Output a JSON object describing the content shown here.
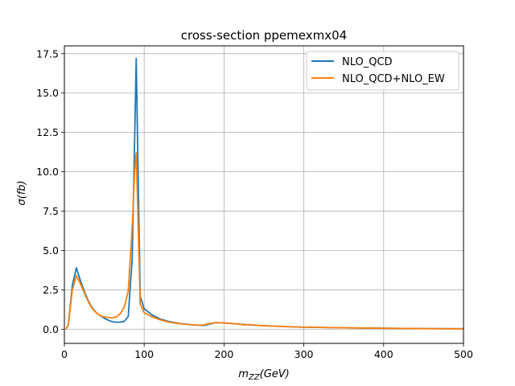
{
  "chart_data": {
    "type": "line",
    "title": "cross-section ppemexmx04",
    "xlabel": "m",
    "xlabel_sub": "ZZ",
    "xlabel_unit": "(GeV)",
    "ylabel": "σ(fb)",
    "xlim": [
      0,
      500
    ],
    "ylim": [
      -0.9,
      18.0
    ],
    "xticks": [
      0,
      100,
      200,
      300,
      400,
      500
    ],
    "yticks": [
      0.0,
      2.5,
      5.0,
      7.5,
      10.0,
      12.5,
      15.0,
      17.5
    ],
    "xtick_labels": [
      "0",
      "100",
      "200",
      "300",
      "400",
      "500"
    ],
    "ytick_labels": [
      "0.0",
      "2.5",
      "5.0",
      "7.5",
      "10.0",
      "12.5",
      "15.0",
      "17.5"
    ],
    "grid": true,
    "legend_position": "top-right",
    "series": [
      {
        "name": "NLO_QCD",
        "color": "#1f77b4",
        "x": [
          2,
          5,
          10,
          15,
          20,
          25,
          30,
          35,
          40,
          45,
          50,
          55,
          60,
          65,
          70,
          75,
          80,
          85,
          88,
          90,
          92,
          95,
          100,
          110,
          120,
          130,
          140,
          150,
          160,
          170,
          175,
          180,
          190,
          200,
          210,
          220,
          230,
          240,
          250,
          260,
          280,
          300,
          350,
          400,
          450,
          500
        ],
        "y": [
          0.0,
          0.3,
          2.8,
          3.9,
          3.1,
          2.4,
          1.8,
          1.35,
          1.05,
          0.85,
          0.7,
          0.57,
          0.48,
          0.44,
          0.45,
          0.5,
          0.8,
          4.5,
          12.0,
          17.2,
          11.0,
          2.1,
          1.3,
          0.9,
          0.65,
          0.5,
          0.4,
          0.33,
          0.28,
          0.25,
          0.24,
          0.3,
          0.42,
          0.4,
          0.35,
          0.32,
          0.28,
          0.25,
          0.22,
          0.2,
          0.16,
          0.13,
          0.09,
          0.06,
          0.04,
          0.03
        ]
      },
      {
        "name": "NLO_QCD+NLO_EW",
        "color": "#ff7f0e",
        "x": [
          2,
          5,
          10,
          15,
          20,
          25,
          30,
          35,
          40,
          45,
          50,
          55,
          60,
          65,
          70,
          75,
          80,
          85,
          88,
          90,
          92,
          95,
          100,
          110,
          120,
          130,
          140,
          150,
          160,
          170,
          175,
          180,
          190,
          200,
          210,
          220,
          225,
          230,
          240,
          250,
          260,
          280,
          300,
          350,
          400,
          450,
          500
        ],
        "y": [
          0.0,
          0.3,
          2.5,
          3.4,
          2.9,
          2.3,
          1.75,
          1.3,
          1.05,
          0.85,
          0.78,
          0.74,
          0.72,
          0.78,
          0.98,
          1.4,
          2.4,
          6.5,
          10.0,
          11.2,
          7.5,
          1.6,
          1.05,
          0.78,
          0.6,
          0.46,
          0.38,
          0.32,
          0.28,
          0.26,
          0.27,
          0.34,
          0.42,
          0.4,
          0.36,
          0.33,
          0.27,
          0.3,
          0.26,
          0.22,
          0.2,
          0.16,
          0.13,
          0.09,
          0.06,
          0.04,
          0.03
        ]
      }
    ]
  }
}
